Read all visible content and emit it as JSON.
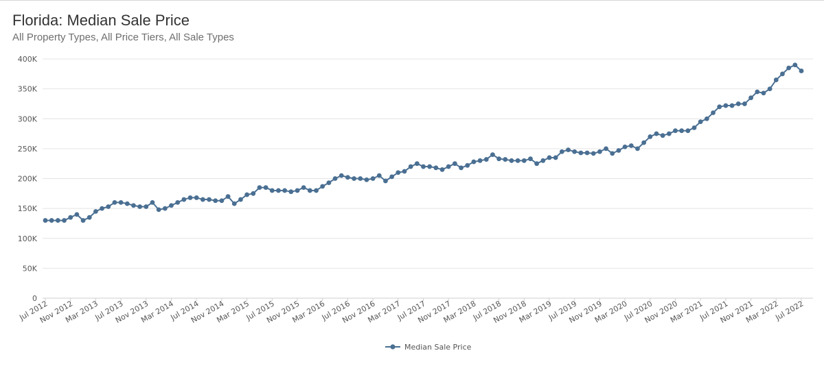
{
  "chart_data": {
    "type": "line",
    "title": "Florida: Median Sale Price",
    "subtitle": "All Property Types, All Price Tiers, All Sale Types",
    "ylim": [
      0,
      400000
    ],
    "grid": true,
    "legend_position": "bottom",
    "line_color": "#4a6f92",
    "y_ticks": [
      0,
      50000,
      100000,
      150000,
      200000,
      250000,
      300000,
      350000,
      400000
    ],
    "y_tick_labels": [
      "0",
      "50K",
      "100K",
      "150K",
      "200K",
      "250K",
      "300K",
      "350K",
      "400K"
    ],
    "x_tick_labels": [
      "Jul 2012",
      "Nov 2012",
      "Mar 2013",
      "Jul 2013",
      "Nov 2013",
      "Mar 2014",
      "Jul 2014",
      "Nov 2014",
      "Mar 2015",
      "Jul 2015",
      "Nov 2015",
      "Mar 2016",
      "Jul 2016",
      "Nov 2016",
      "Mar 2017",
      "Jul 2017",
      "Nov 2017",
      "Mar 2018",
      "Jul 2018",
      "Nov 2018",
      "Mar 2019",
      "Jul 2019",
      "Nov 2019",
      "Mar 2020",
      "Jul 2020",
      "Nov 2020",
      "Mar 2021",
      "Jul 2021",
      "Nov 2021",
      "Mar 2022",
      "Jul 2022"
    ],
    "x_start": "2012-07",
    "x_end": "2022-07",
    "series": [
      {
        "name": "Median Sale Price",
        "values": [
          130000,
          130000,
          130000,
          130000,
          135000,
          140000,
          130000,
          135000,
          145000,
          150000,
          153000,
          160000,
          160000,
          158000,
          155000,
          153000,
          153000,
          160000,
          148000,
          150000,
          155000,
          160000,
          165000,
          168000,
          168000,
          165000,
          165000,
          163000,
          163000,
          170000,
          158000,
          165000,
          173000,
          175000,
          185000,
          185000,
          180000,
          180000,
          180000,
          178000,
          180000,
          185000,
          180000,
          180000,
          187000,
          193000,
          200000,
          205000,
          202000,
          200000,
          200000,
          198000,
          200000,
          205000,
          196000,
          203000,
          210000,
          212000,
          220000,
          225000,
          220000,
          220000,
          218000,
          215000,
          220000,
          225000,
          218000,
          222000,
          228000,
          230000,
          232000,
          240000,
          233000,
          232000,
          230000,
          230000,
          230000,
          233000,
          225000,
          230000,
          235000,
          235000,
          245000,
          248000,
          245000,
          243000,
          243000,
          242000,
          245000,
          250000,
          242000,
          247000,
          253000,
          255000,
          250000,
          260000,
          270000,
          275000,
          272000,
          275000,
          280000,
          280000,
          280000,
          285000,
          295000,
          300000,
          310000,
          320000,
          322000,
          322000,
          325000,
          325000,
          335000,
          345000,
          343000,
          350000,
          365000,
          375000,
          385000,
          390000,
          380000
        ]
      }
    ]
  }
}
